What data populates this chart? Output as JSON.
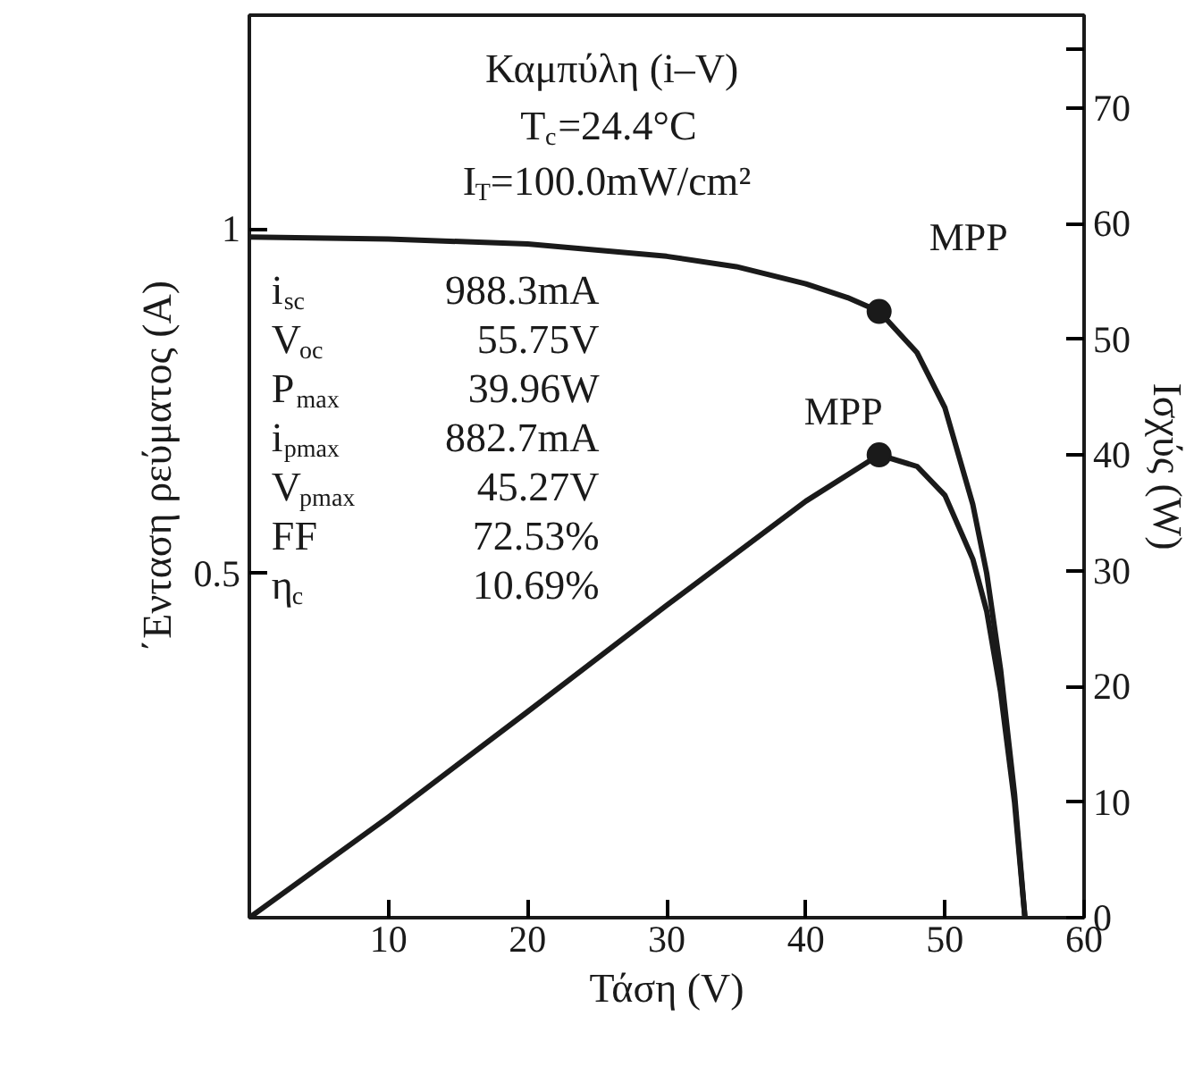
{
  "chart_data": {
    "type": "line",
    "title": "Καμπύλη (i–V)",
    "subtitle": "T$_{c}$=24.4°C\nI$_{T}$=100.0mW/cm²",
    "xlabel": "Τάση (V)",
    "ylabel": "΄Ενταση ρεύματος (A)",
    "y2label": "Ισχύς (W)",
    "xlim": [
      0,
      60
    ],
    "xticks": [
      10,
      20,
      30,
      40,
      50,
      60
    ],
    "ylim": [
      0,
      1.31
    ],
    "yticks": [
      0.5,
      1
    ],
    "y2lim": [
      0,
      78
    ],
    "y2ticks": [
      0,
      10,
      20,
      30,
      40,
      50,
      60,
      70,
      {
        "value": 75,
        "label": null
      }
    ],
    "grid": false,
    "series": [
      {
        "type": "line",
        "color": "#1a1a1a",
        "x": [
          0,
          10,
          20,
          30,
          35,
          40,
          43,
          45.27,
          48,
          50,
          52,
          53,
          54,
          55,
          55.75
        ],
        "values": [
          0.988,
          0.985,
          0.978,
          0.96,
          0.945,
          0.92,
          0.9,
          0.88,
          0.82,
          0.74,
          0.6,
          0.5,
          0.36,
          0.18,
          0
        ]
      },
      {
        "type": "line",
        "axis": "y2",
        "color": "#1a1a1a",
        "x": [
          0,
          10,
          20,
          30,
          40,
          45.27,
          48,
          50,
          52,
          53,
          54,
          55,
          55.75
        ],
        "values": [
          0,
          8.7,
          17.8,
          27,
          36,
          40,
          39,
          36.5,
          31,
          26.5,
          19.5,
          10,
          0
        ]
      },
      {
        "type": "scatter",
        "marker": "circle",
        "color": "#1a1a1a",
        "x": [
          45.27
        ],
        "values": [
          0.88
        ]
      },
      {
        "type": "scatter",
        "marker": "circle",
        "axis": "y2",
        "color": "#1a1a1a",
        "x": [
          45.27
        ],
        "values": [
          40
        ]
      }
    ],
    "annotations": [
      "i$_{sc}$ 988.3mA",
      "V$_{oc}$ 55.75V",
      "P$_{max}$ 39.96W",
      "i$_{pmax}$ 882.7mA",
      "V$_{pmax}$ 45.27V",
      "FF 72.53%",
      "η$_{c}$ 10.69%",
      {
        "text": "MPP",
        "x": 45.27,
        "y": 0.88
      },
      {
        "text": "MPP",
        "x": 45.27,
        "y": 0.666
      }
    ]
  }
}
